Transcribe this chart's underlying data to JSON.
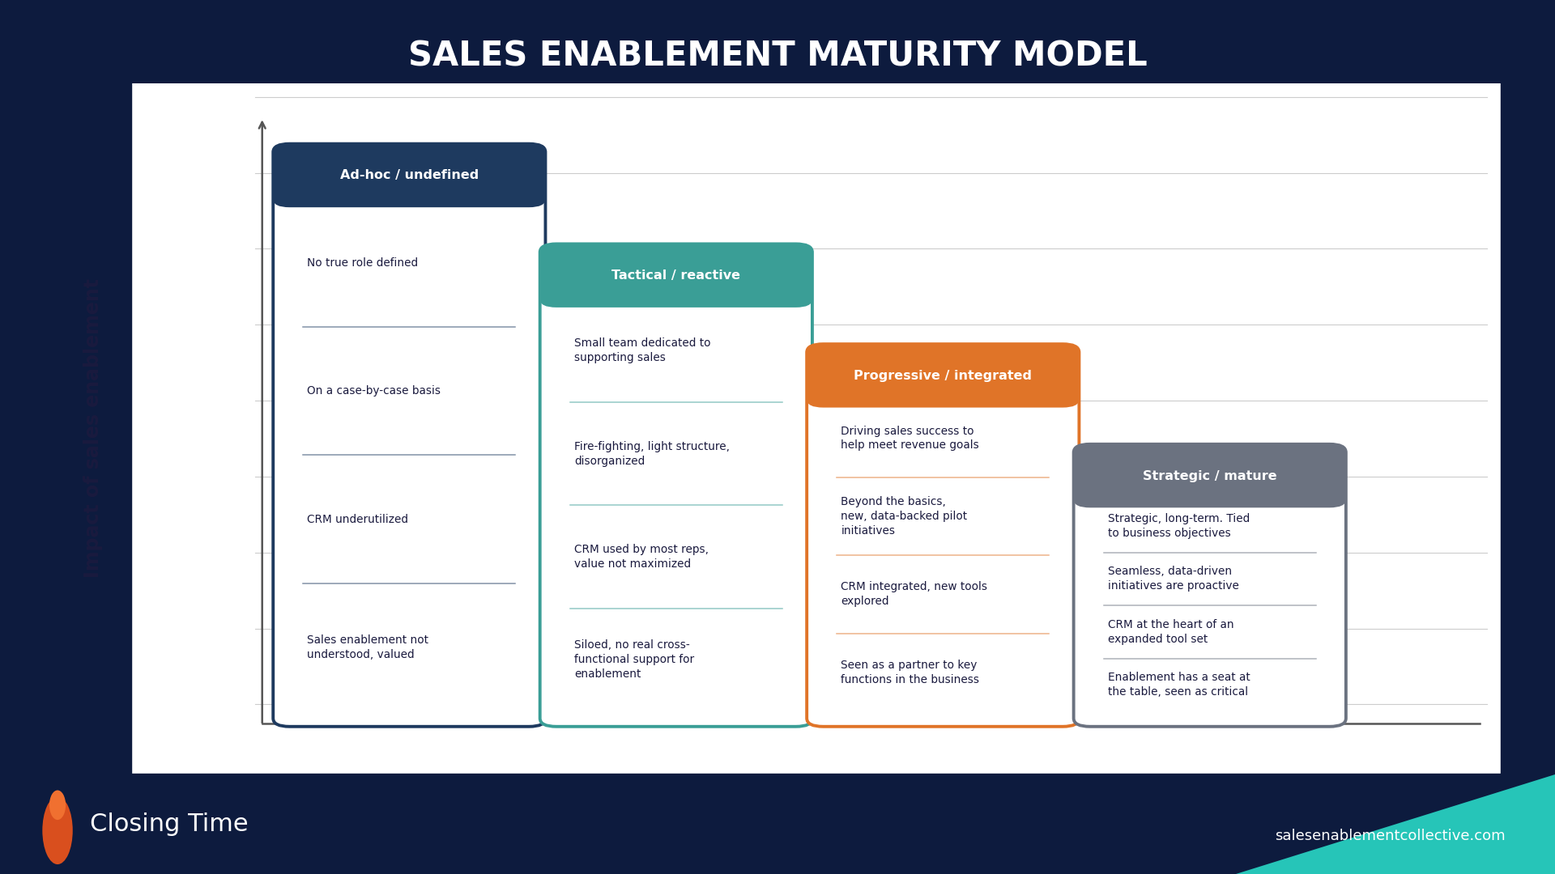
{
  "title": "SALES ENABLEMENT MATURITY MODEL",
  "title_color": "#FFFFFF",
  "title_fontsize": 30,
  "bg_teal": "#1a7080",
  "bg_navy": "#0d1b3e",
  "chart_bg": "#FFFFFF",
  "footer_teal": "#26c5b8",
  "footer_left_text": "Closing Time",
  "footer_right_text": "salesenablementcollective.com",
  "ylabel": "Impact of sales enablement",
  "grid_color": "#cccccc",
  "axis_color": "#555555",
  "text_color": "#1a1a3e",
  "divider_colors": [
    "#2a4a6a",
    "#3a9e96",
    "#e07428",
    "#808080"
  ],
  "columns": [
    {
      "title": "Ad-hoc / undefined",
      "title_bg": "#1e3a5f",
      "border_color": "#1e3a5f",
      "items": [
        "No true role defined",
        "On a case-by-case basis",
        "CRM underutilized",
        "Sales enablement not\nunderstood, valued"
      ]
    },
    {
      "title": "Tactical / reactive",
      "title_bg": "#3a9e96",
      "border_color": "#3a9e96",
      "items": [
        "Small team dedicated to\nsupporting sales",
        "Fire-fighting, light structure,\ndisorganized",
        "CRM used by most reps,\nvalue not maximized",
        "Siloed, no real cross-\nfunctional support for\nenablement"
      ]
    },
    {
      "title": "Progressive / integrated",
      "title_bg": "#e07428",
      "border_color": "#e07428",
      "items": [
        "Driving sales success to\nhelp meet revenue goals",
        "Beyond the basics,\nnew, data-backed pilot\ninitiatives",
        "CRM integrated, new tools\nexplored",
        "Seen as a partner to key\nfunctions in the business"
      ]
    },
    {
      "title": "Strategic / mature",
      "title_bg": "#6b7280",
      "border_color": "#6b7280",
      "items": [
        "Strategic, long-term. Tied\nto business objectives",
        "Seamless, data-driven\ninitiatives are proactive",
        "CRM at the heart of an\nexpanded tool set",
        "Enablement has a seat at\nthe table, seen as critical"
      ]
    }
  ]
}
